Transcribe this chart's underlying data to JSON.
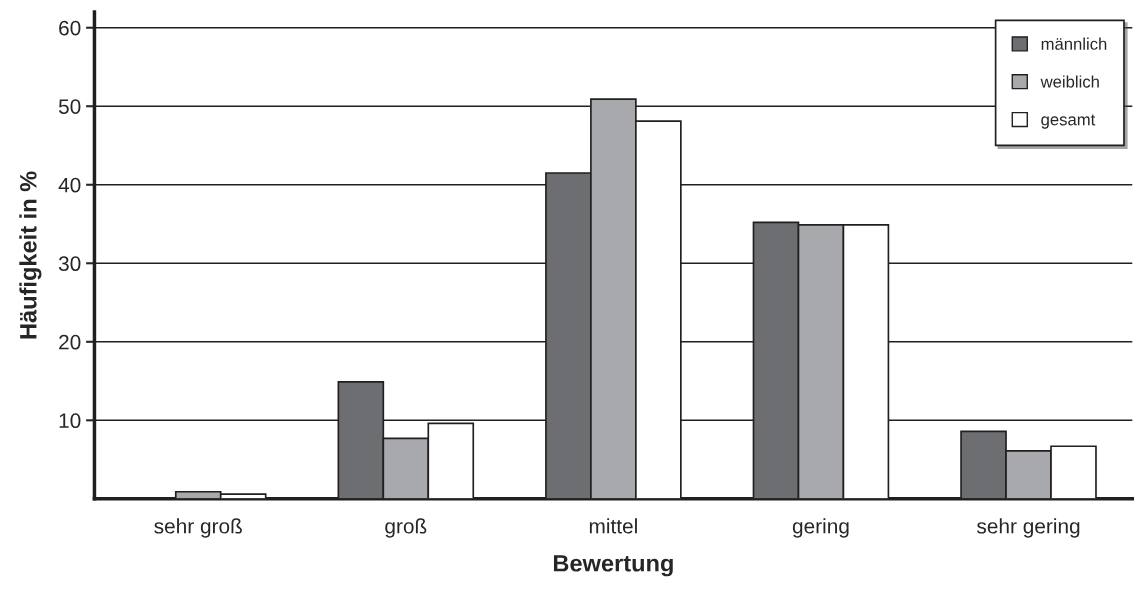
{
  "chart_data": {
    "type": "bar",
    "xlabel": "Bewertung",
    "ylabel": "Häufigkeit in %",
    "categories": [
      "sehr groß",
      "groß",
      "mittel",
      "gering",
      "sehr gering"
    ],
    "series": [
      {
        "name": "männlich",
        "color": "#6d6e71",
        "values": [
          0,
          14.9,
          41.5,
          35.2,
          8.6
        ]
      },
      {
        "name": "weiblich",
        "color": "#a8a9ac",
        "values": [
          0.9,
          7.7,
          50.9,
          34.9,
          6.1
        ]
      },
      {
        "name": "gesamt",
        "color": "#ffffff",
        "values": [
          0.6,
          9.6,
          48.1,
          34.9,
          6.7
        ]
      }
    ],
    "ylim": [
      0,
      62
    ],
    "yticks": [
      10,
      20,
      30,
      40,
      50,
      60
    ],
    "grid": "y",
    "legend": "top right"
  }
}
